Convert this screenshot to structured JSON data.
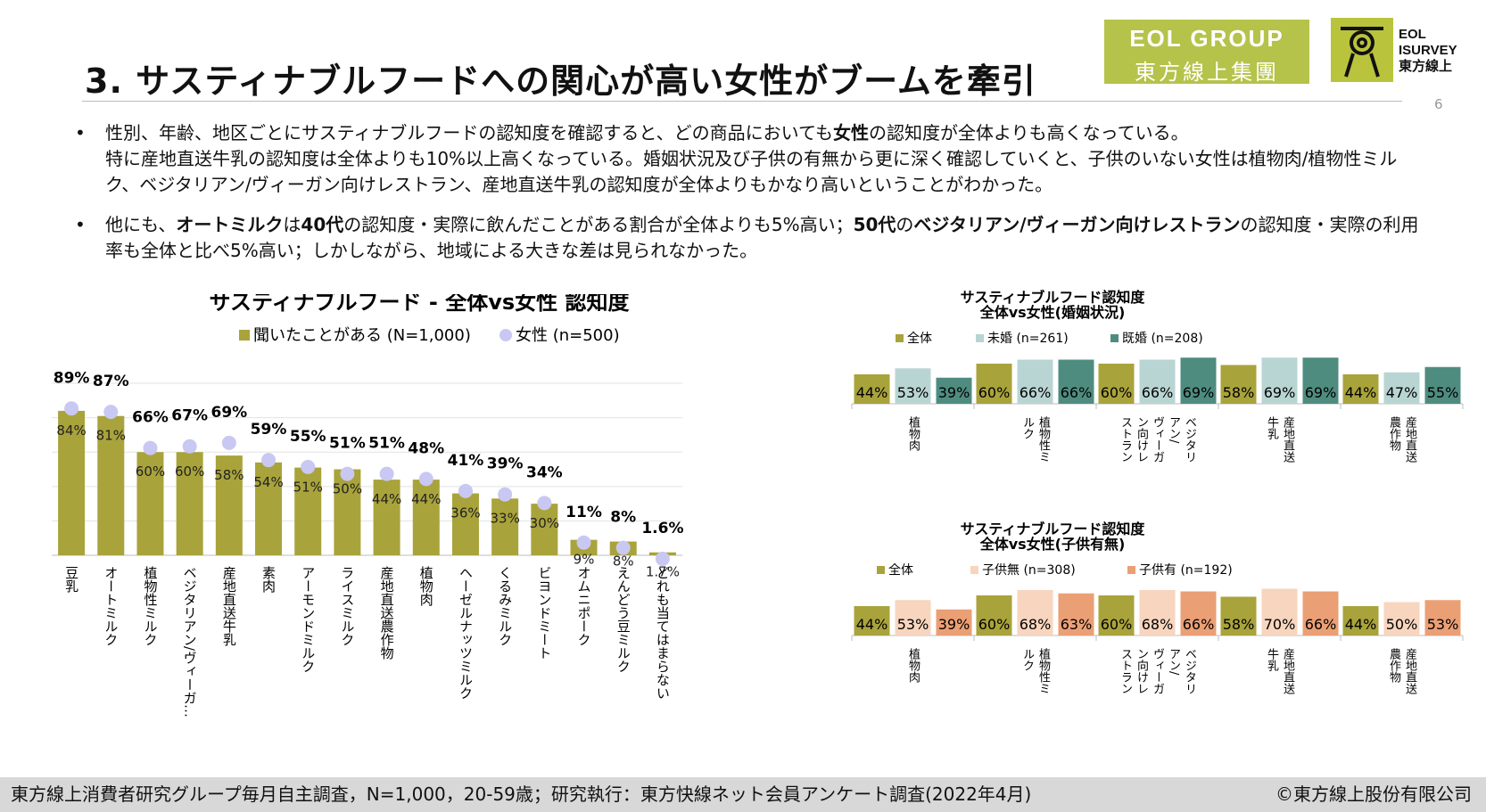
{
  "header": {
    "title": "3. サスティナブルフードへの関心が高い女性がブームを牽引",
    "page_number": "6",
    "logo_eol_line1": "EOL GROUP",
    "logo_eol_line2": "東方線上集團",
    "logo_isurvey_line1": "EOL",
    "logo_isurvey_line2": "ISURVEY",
    "logo_isurvey_line3": "東方線上"
  },
  "bullets": [
    [
      {
        "t": "性別、年齢、地区ごとにサスティナブルフードの認知度を確認すると、どの商品においても",
        "b": false
      },
      {
        "t": "女性",
        "b": true
      },
      {
        "t": "の認知度が全体よりも高くなっている。",
        "b": false
      },
      {
        "t": "\n特に産地直送牛乳の認知度は全体よりも10%以上高くなっている。婚姻状況及び子供の有無から更に深く確認していくと、子供のいない女性は植物肉/植物性ミルク、ベジタリアン/ヴィーガン向けレストラン、産地直送牛乳の認知度が全体よりもかなり高いということがわかった。",
        "b": false
      }
    ],
    [
      {
        "t": "他にも、",
        "b": false
      },
      {
        "t": "オートミルク",
        "b": true
      },
      {
        "t": "は",
        "b": false
      },
      {
        "t": "40代",
        "b": true
      },
      {
        "t": "の認知度・実際に飲んだことがある割合が全体よりも5%高い；",
        "b": false
      },
      {
        "t": "50代",
        "b": true
      },
      {
        "t": "の",
        "b": false
      },
      {
        "t": "ベジタリアン/ヴィーガン向けレストラン",
        "b": true
      },
      {
        "t": "の認知度・実際の利用率も全体と比べ5%高い；しかしながら、地域による大きな差は見られなかった。",
        "b": false
      }
    ]
  ],
  "colors": {
    "olive": "#a9a33b",
    "lavender": "#c8c8f2",
    "pale_teal": "#b8d5d3",
    "dark_teal": "#4f8c80",
    "peach": "#f7d5be",
    "salmon": "#eb9f75"
  },
  "footer": {
    "left": "東方線上消費者研究グループ毎月自主調査，N=1,000，20-59歳；研究執行：東方快線ネット会員アンケート調査(2022年4月)",
    "right": "©東方線上股份有限公司"
  },
  "chart_data": [
    {
      "type": "bar",
      "title": "サスティナブルフード - 全体vs女性 認知度",
      "legend": [
        "聞いたことがある (N=1,000)",
        "女性 (n=500)"
      ],
      "categories": [
        "豆乳",
        "オートミルク",
        "植物性ミルク",
        "ベジタリアン/ヴィーガ…",
        "産地直送牛乳",
        "素肉",
        "アーモンドミルク",
        "ライスミルク",
        "産地直送農作物",
        "植物肉",
        "ヘーゼルナッツミルク",
        "くるみミルク",
        "ビヨンドミート",
        "オムニポーク",
        "えんどう豆ミルク",
        "どれも当てはまらない"
      ],
      "series": [
        {
          "name": "聞いたことがある (N=1,000)",
          "values": [
            84,
            81,
            60,
            60,
            58,
            54,
            51,
            50,
            44,
            44,
            36,
            33,
            30,
            9,
            8,
            1.7
          ],
          "labels": [
            "84%",
            "81%",
            "60%",
            "60%",
            "58%",
            "54%",
            "51%",
            "50%",
            "44%",
            "44%",
            "36%",
            "33%",
            "30%",
            "9%",
            "8%",
            "1.7%"
          ]
        },
        {
          "name": "女性 (n=500)",
          "values": [
            89,
            87,
            66,
            67,
            69,
            59,
            55,
            51,
            51,
            48,
            41,
            39,
            34,
            11,
            8,
            1.6
          ],
          "labels": [
            "89%",
            "87%",
            "66%",
            "67%",
            "69%",
            "59%",
            "55%",
            "51%",
            "51%",
            "48%",
            "41%",
            "39%",
            "34%",
            "11%",
            "8%",
            "1.6%"
          ]
        }
      ]
    },
    {
      "type": "bar",
      "title": "サスティナブルフード認知度",
      "subtitle": "全体vs女性(婚姻状況)",
      "categories": [
        [
          "植物肉"
        ],
        [
          "植物性ミ",
          "ルク"
        ],
        [
          "ベジタリ",
          "アン/",
          "ヴィーガ",
          "ン向けレ",
          "ストラン"
        ],
        [
          "産地直送",
          "牛乳"
        ],
        [
          "産地直送",
          "農作物"
        ]
      ],
      "series": [
        {
          "name": "全体",
          "values": [
            44,
            60,
            60,
            58,
            44
          ],
          "labels": [
            "44%",
            "60%",
            "60%",
            "58%",
            "44%"
          ]
        },
        {
          "name": "未婚 (n=261)",
          "values": [
            53,
            66,
            66,
            69,
            47
          ],
          "labels": [
            "53%",
            "66%",
            "66%",
            "69%",
            "47%"
          ]
        },
        {
          "name": "既婚 (n=208)",
          "values": [
            39,
            66,
            69,
            69,
            55
          ],
          "labels": [
            "39%",
            "66%",
            "69%",
            "69%",
            "55%"
          ]
        }
      ]
    },
    {
      "type": "bar",
      "title": "サスティナブルフード認知度",
      "subtitle": "全体vs女性(子供有無)",
      "categories": [
        [
          "植物肉"
        ],
        [
          "植物性ミ",
          "ルク"
        ],
        [
          "ベジタリ",
          "アン/",
          "ヴィーガ",
          "ン向けレ",
          "ストラン"
        ],
        [
          "産地直送",
          "牛乳"
        ],
        [
          "産地直送",
          "農作物"
        ]
      ],
      "series": [
        {
          "name": "全体",
          "values": [
            44,
            60,
            60,
            58,
            44
          ],
          "labels": [
            "44%",
            "60%",
            "60%",
            "58%",
            "44%"
          ]
        },
        {
          "name": "子供無 (n=308)",
          "values": [
            53,
            68,
            68,
            70,
            50
          ],
          "labels": [
            "53%",
            "68%",
            "68%",
            "70%",
            "50%"
          ]
        },
        {
          "name": "子供有 (n=192)",
          "values": [
            39,
            63,
            66,
            66,
            53
          ],
          "labels": [
            "39%",
            "63%",
            "66%",
            "66%",
            "53%"
          ]
        }
      ]
    }
  ]
}
